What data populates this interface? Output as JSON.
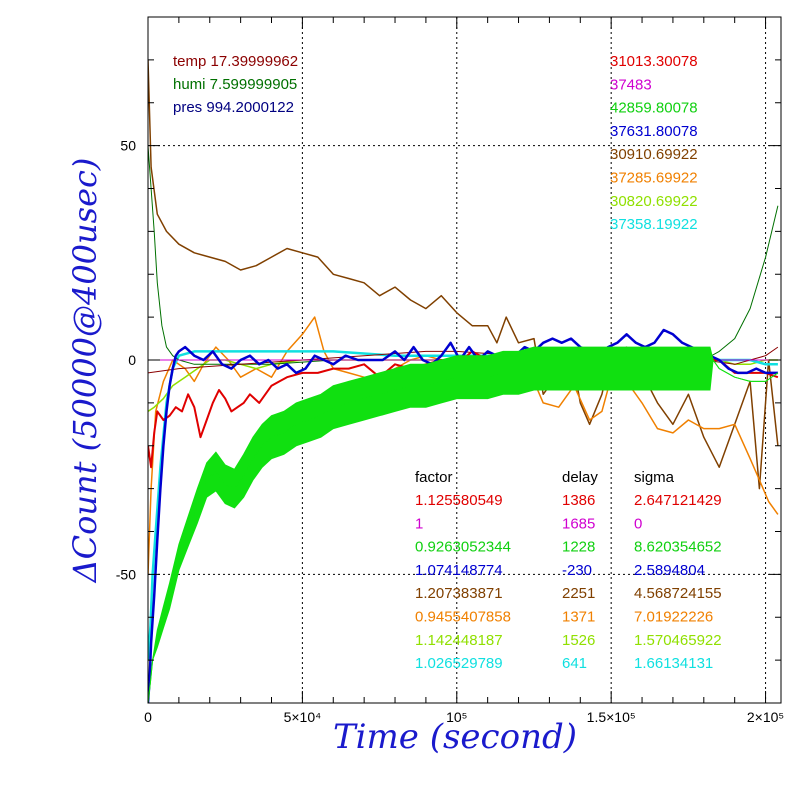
{
  "chart_data": {
    "type": "line",
    "title": "",
    "xlabel": "Time (second)",
    "ylabel": "ΔCount (50000@400usec)",
    "xlim": [
      0,
      205000
    ],
    "ylim": [
      -80,
      80
    ],
    "grid": true,
    "x_tick_labels": [
      {
        "value": 0,
        "label": "0"
      },
      {
        "value": 50000,
        "label": "5×10⁴"
      },
      {
        "value": 100000,
        "label": "10⁵"
      },
      {
        "value": 150000,
        "label": "1.5×10⁵"
      },
      {
        "value": 200000,
        "label": "2×10⁵"
      }
    ],
    "y_tick_labels": [
      {
        "value": 50,
        "label": "50"
      },
      {
        "value": 0,
        "label": "0"
      },
      {
        "value": -50,
        "label": "-50"
      }
    ],
    "env_readings": [
      {
        "text": "temp 17.39999962",
        "color": "#8b0000"
      },
      {
        "text": "humi 7.599999905",
        "color": "#007000"
      },
      {
        "text": "pres 994.2000122",
        "color": "#000080"
      }
    ],
    "channel_values": [
      {
        "text": "31013.30078",
        "color": "#e00000"
      },
      {
        "text": "37483",
        "color": "#d000d0"
      },
      {
        "text": "42859.80078",
        "color": "#10d010"
      },
      {
        "text": "37631.80078",
        "color": "#0000d0"
      },
      {
        "text": "30910.69922",
        "color": "#804000"
      },
      {
        "text": "37285.69922",
        "color": "#f08000"
      },
      {
        "text": "30820.69922",
        "color": "#90e000"
      },
      {
        "text": "37358.19922",
        "color": "#10e0e0"
      }
    ],
    "table": {
      "headers": [
        "factor",
        "delay",
        "sigma"
      ],
      "rows": [
        {
          "factor": "1.125580549",
          "delay": "1386",
          "sigma": "2.647121429",
          "color": "#e00000"
        },
        {
          "factor": "1",
          "delay": "1685",
          "sigma": "0",
          "color": "#d000d0"
        },
        {
          "factor": "0.9263052344",
          "delay": "1228",
          "sigma": "8.620354652",
          "color": "#10d010"
        },
        {
          "factor": "1.074148774",
          "delay": "-230",
          "sigma": "2.5894804",
          "color": "#0000d0"
        },
        {
          "factor": "1.207383871",
          "delay": "2251",
          "sigma": "4.568724155",
          "color": "#804000"
        },
        {
          "factor": "0.9455407858",
          "delay": "1371",
          "sigma": "7.01922226",
          "color": "#f08000"
        },
        {
          "factor": "1.142448187",
          "delay": "1526",
          "sigma": "1.570465922",
          "color": "#90e000"
        },
        {
          "factor": "1.026529789",
          "delay": "641",
          "sigma": "1.66134131",
          "color": "#10e0e0"
        }
      ]
    },
    "series": [
      {
        "color": "#804000",
        "width": 1.5,
        "x": [
          0,
          1000,
          3000,
          6000,
          10000,
          15000,
          20000,
          25000,
          30000,
          35000,
          40000,
          45000,
          50000,
          55000,
          60000,
          65000,
          70000,
          75000,
          80000,
          85000,
          90000,
          95000,
          100000,
          105000,
          110000,
          113000,
          116000,
          120000,
          125000,
          128000,
          132000,
          137000,
          140000,
          143000,
          147000,
          150000,
          155000,
          160000,
          165000,
          170000,
          175000,
          180000,
          185000,
          190000,
          195000,
          198000,
          201000,
          204000
        ],
        "y": [
          70,
          45,
          34,
          30,
          27,
          25,
          24,
          23,
          21,
          22,
          24,
          26,
          25,
          24,
          20,
          19,
          18,
          15,
          17,
          14,
          12,
          15,
          11,
          8,
          8,
          4,
          10,
          4,
          5,
          -8,
          -4,
          2,
          -10,
          -15,
          -8,
          1,
          3,
          -3,
          -10,
          -15,
          -8,
          -18,
          -25,
          -15,
          -5,
          -30,
          0,
          -20
        ]
      },
      {
        "color": "#f08000",
        "width": 1.5,
        "x": [
          0,
          1000,
          2500,
          5000,
          8000,
          12000,
          15000,
          18000,
          22000,
          26000,
          30000,
          35000,
          40000,
          45000,
          50000,
          54000,
          57000,
          60000,
          65000,
          70000,
          75000,
          80000,
          85000,
          90000,
          95000,
          100000,
          105000,
          110000,
          115000,
          120000,
          125000,
          128000,
          133000,
          138000,
          143000,
          147000,
          150000,
          155000,
          160000,
          165000,
          170000,
          175000,
          180000,
          185000,
          190000,
          195000,
          198000,
          201000,
          204000
        ],
        "y": [
          -50,
          -30,
          -12,
          -5,
          0,
          -2,
          -5,
          -1,
          3,
          0,
          -4,
          -2,
          -4,
          2,
          6,
          10,
          2,
          -2,
          -3,
          -4,
          -4,
          -2,
          0,
          1,
          0,
          -1,
          0,
          1,
          -1,
          -3,
          -5,
          -10,
          -11,
          -6,
          -14,
          -12,
          -4,
          -5,
          -10,
          -16,
          -17,
          -14,
          -16,
          -16,
          -15,
          -23,
          -28,
          -33,
          -36
        ]
      },
      {
        "color": "#90e000",
        "width": 1.5,
        "x": [
          0,
          2000,
          5000,
          8000,
          12000,
          16000,
          20000,
          25000,
          30000,
          35000,
          40000,
          50000,
          60000,
          80000,
          100000,
          120000,
          140000,
          160000,
          175000,
          185000,
          190000,
          195000,
          200000,
          204000
        ],
        "y": [
          -12,
          -11,
          -9,
          -6,
          -4,
          -2,
          0,
          0,
          -1,
          -2,
          -1,
          0,
          0,
          0,
          0,
          0,
          0,
          0,
          0,
          0,
          -1,
          -1,
          0,
          0
        ]
      },
      {
        "color": "#10e0e0",
        "width": 2.5,
        "x": [
          0,
          800,
          1500,
          2500,
          4000,
          6000,
          8000,
          10000,
          15000,
          20000,
          30000,
          40000,
          50000,
          60000,
          80000,
          100000,
          130000,
          160000,
          180000,
          190000,
          195000,
          200000,
          204000
        ],
        "y": [
          -70,
          -62,
          -50,
          -40,
          -25,
          -10,
          -2,
          1,
          2,
          2,
          2,
          2,
          2,
          2,
          1,
          1,
          1,
          1,
          0,
          0,
          0,
          -1,
          -1
        ]
      },
      {
        "color": "#007000",
        "width": 1,
        "x": [
          0,
          1000,
          2000,
          3000,
          4500,
          6000,
          8000,
          10000,
          15000,
          20000,
          40000,
          60000,
          100000,
          140000,
          170000,
          180000,
          185000,
          190000,
          195000,
          200000,
          204000
        ],
        "y": [
          50,
          40,
          30,
          18,
          8,
          3,
          1,
          0,
          -1,
          -1,
          -1,
          0,
          0,
          0,
          0,
          0,
          2,
          5,
          12,
          24,
          36
        ]
      },
      {
        "color": "#8b0000",
        "width": 1,
        "x": [
          0,
          10000,
          30000,
          50000,
          70000,
          90000,
          100000,
          120000,
          140000,
          160000,
          180000,
          190000,
          200000,
          204000
        ],
        "y": [
          -3,
          -2,
          -1,
          0,
          1,
          2,
          2,
          1,
          2,
          1,
          0,
          -1,
          1,
          3
        ]
      },
      {
        "color": "#000080",
        "width": 1,
        "x": [
          0,
          20000,
          40000,
          60000,
          80000,
          100000,
          120000,
          140000,
          160000,
          180000,
          200000,
          204000
        ],
        "y": [
          0,
          0,
          0,
          0,
          0,
          0,
          0,
          0,
          0,
          0,
          0,
          0
        ]
      },
      {
        "color": "#d000d0",
        "width": 1,
        "x": [
          0,
          204000
        ],
        "y": [
          0,
          0
        ]
      },
      {
        "color": "#e00000",
        "width": 2,
        "x": [
          0,
          1000,
          2000,
          3000,
          5000,
          7000,
          9000,
          11000,
          13000,
          15000,
          17000,
          19000,
          21000,
          23000,
          25000,
          27000,
          29000,
          31000,
          33000,
          36000,
          40000,
          45000,
          50000,
          55000,
          60000,
          65000,
          70000,
          75000,
          80000,
          85000,
          90000,
          95000,
          100000,
          105000,
          110000,
          115000,
          120000,
          125000,
          130000,
          135000,
          140000,
          145000,
          150000,
          155000,
          160000,
          165000,
          170000,
          175000,
          180000,
          185000,
          190000,
          195000,
          200000,
          204000
        ],
        "y": [
          -20,
          -25,
          -17,
          -12,
          -14,
          -13,
          -11,
          -12,
          -8,
          -11,
          -18,
          -14,
          -10,
          -7,
          -9,
          -12,
          -11,
          -10,
          -8,
          -10,
          -6,
          -4,
          -3,
          -3,
          -2,
          -2,
          -1,
          -4,
          -1,
          -2,
          -1,
          0,
          -1,
          2,
          0,
          -1,
          1,
          0,
          0,
          1,
          0,
          0,
          0,
          1,
          0,
          1,
          2,
          1,
          0,
          0,
          -3,
          -3,
          -3,
          -4
        ]
      },
      {
        "color": "#0000d0",
        "width": 2.5,
        "x": [
          0,
          500,
          1000,
          2000,
          3000,
          4000,
          5000,
          6000,
          7000,
          8000,
          9000,
          10000,
          12000,
          15000,
          18000,
          21000,
          24000,
          27000,
          30000,
          33000,
          36000,
          39000,
          42000,
          45000,
          48000,
          51000,
          54000,
          57000,
          60000,
          64000,
          68000,
          72000,
          76000,
          80000,
          83000,
          86000,
          89000,
          92000,
          95000,
          98000,
          101000,
          104000,
          107000,
          110000,
          113000,
          116000,
          119000,
          122000,
          125000,
          128000,
          131000,
          134000,
          137000,
          140000,
          143000,
          146000,
          149000,
          152000,
          155000,
          158000,
          161000,
          164000,
          167000,
          170000,
          173000,
          176000,
          179000,
          182000,
          185000,
          188000,
          191000,
          194000,
          197000,
          200000,
          204000
        ],
        "y": [
          -80,
          -75,
          -66,
          -55,
          -42,
          -30,
          -20,
          -12,
          -6,
          -2,
          1,
          2,
          3,
          1,
          0,
          2,
          -1,
          -2,
          0,
          1,
          -1,
          0,
          -2,
          -1,
          -3,
          -2,
          1,
          0,
          -1,
          1,
          0,
          0,
          0,
          2,
          0,
          3,
          0,
          -1,
          1,
          4,
          0,
          3,
          0,
          2,
          1,
          -1,
          1,
          3,
          2,
          4,
          5,
          4,
          5,
          3,
          2,
          1,
          3,
          4,
          6,
          4,
          3,
          4,
          7,
          6,
          4,
          3,
          2,
          1,
          0,
          -2,
          -3,
          -3,
          -2,
          -3,
          -3
        ]
      },
      {
        "color": "#10e010",
        "width": 1,
        "band": true,
        "bandStart": 3000,
        "x": [
          0,
          800,
          1500,
          3000,
          5000,
          7000,
          10000,
          13000,
          16000,
          19000,
          22000,
          25000,
          28000,
          31000,
          34000,
          37000,
          40000,
          44000,
          48000,
          52000,
          56000,
          60000,
          65000,
          70000,
          75000,
          80000,
          85000,
          90000,
          95000,
          100000,
          105000,
          110000,
          115000,
          120000,
          125000,
          130000,
          135000,
          140000,
          145000,
          150000,
          155000,
          160000,
          165000,
          170000,
          175000,
          180000,
          182000,
          183000,
          185000,
          190000,
          195000,
          200000,
          204000
        ],
        "y": [
          -80,
          -75,
          -70,
          -65,
          -60,
          -55,
          -46,
          -40,
          -34,
          -28,
          -26,
          -29,
          -30,
          -27,
          -23,
          -20,
          -18,
          -17,
          -15,
          -14,
          -13,
          -11,
          -10,
          -9,
          -8,
          -7,
          -6,
          -6,
          -5,
          -4,
          -4,
          -4,
          -3,
          -3,
          -2,
          -2,
          -2,
          -2,
          -2,
          -2,
          -2,
          -2,
          -2,
          -2,
          -2,
          -2,
          -2,
          0,
          -2,
          -4,
          -5,
          -5,
          -3
        ],
        "amp": [
          0,
          0,
          0,
          2,
          2.5,
          3,
          3,
          3.5,
          4,
          4,
          4.5,
          4.5,
          4.5,
          5,
          5,
          5,
          5,
          5,
          5,
          5,
          5,
          5,
          5,
          5,
          5,
          5,
          5,
          5,
          5,
          5,
          5,
          5,
          5,
          5,
          5,
          5,
          5,
          5,
          5,
          5,
          5,
          5,
          5,
          5,
          5,
          5,
          5,
          0,
          0,
          0,
          0,
          0,
          0
        ]
      }
    ]
  }
}
